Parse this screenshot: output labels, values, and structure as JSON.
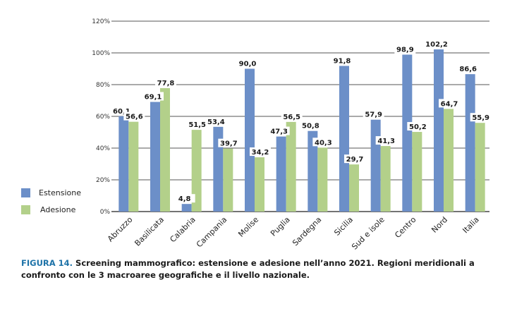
{
  "chart_data": {
    "type": "bar",
    "title": "",
    "xlabel": "",
    "ylabel": "",
    "ylim": [
      0,
      120
    ],
    "yticks": [
      0,
      20,
      40,
      60,
      80,
      100,
      120
    ],
    "ytick_labels": [
      "0%",
      "20%",
      "40%",
      "60%",
      "80%",
      "100%",
      "120%"
    ],
    "grid": true,
    "legend_position": "bottom-left",
    "categories": [
      "Abruzzo",
      "Basilicata",
      "Calabria",
      "Campania",
      "Molise",
      "Puglia",
      "Sardegna",
      "Sicilia",
      "Sud e isole",
      "Centro",
      "Nord",
      "Italia"
    ],
    "series": [
      {
        "name": "Estensione",
        "color": "#6c8fc8",
        "values": [
          60.1,
          69.1,
          4.8,
          53.4,
          90.0,
          47.3,
          50.8,
          91.8,
          57.9,
          98.9,
          102.2,
          86.6
        ],
        "labels": [
          "60,1",
          "69,1",
          "4,8",
          "53,4",
          "90,0",
          "47,3",
          "50,8",
          "91,8",
          "57,9",
          "98,9",
          "102,2",
          "86,6"
        ]
      },
      {
        "name": "Adesione",
        "color": "#b3d08a",
        "values": [
          56.6,
          77.8,
          51.5,
          39.7,
          34.2,
          56.5,
          40.3,
          29.7,
          41.3,
          50.2,
          64.7,
          55.9
        ],
        "labels": [
          "56,6",
          "77,8",
          "51,5",
          "39,7",
          "34,2",
          "56,5",
          "40,3",
          "29,7",
          "41,3",
          "50,2",
          "64,7",
          "55,9"
        ]
      }
    ]
  },
  "caption": {
    "figure_label": "FIGURA 14.",
    "text": " Screening mammografico: estensione e adesione nell’anno 2021. Regioni meridionali a confronto con le 3 macroaree geografiche e il livello nazionale."
  }
}
